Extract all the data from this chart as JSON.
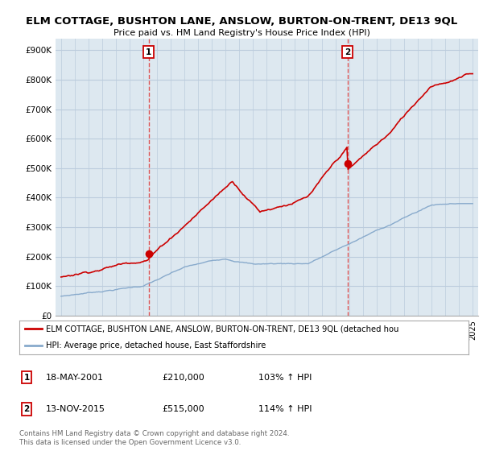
{
  "title": "ELM COTTAGE, BUSHTON LANE, ANSLOW, BURTON-ON-TRENT, DE13 9QL",
  "subtitle": "Price paid vs. HM Land Registry's House Price Index (HPI)",
  "yticks": [
    0,
    100000,
    200000,
    300000,
    400000,
    500000,
    600000,
    700000,
    800000,
    900000
  ],
  "ytick_labels": [
    "£0",
    "£100K",
    "£200K",
    "£300K",
    "£400K",
    "£500K",
    "£600K",
    "£700K",
    "£800K",
    "£900K"
  ],
  "xlim_start": 1994.6,
  "xlim_end": 2025.4,
  "ylim_min": 0,
  "ylim_max": 940000,
  "sale1_x": 2001.38,
  "sale1_y": 210000,
  "sale1_label": "1",
  "sale2_x": 2015.87,
  "sale2_y": 515000,
  "sale2_label": "2",
  "red_line_color": "#cc0000",
  "blue_line_color": "#88aacc",
  "plot_bg_color": "#dde8f0",
  "marker_box_color": "#cc0000",
  "vline_color": "#dd4444",
  "background_color": "#ffffff",
  "grid_color": "#bbccdd",
  "legend_label_red": "ELM COTTAGE, BUSHTON LANE, ANSLOW, BURTON-ON-TRENT, DE13 9QL (detached hou",
  "legend_label_blue": "HPI: Average price, detached house, East Staffordshire",
  "footer1": "Contains HM Land Registry data © Crown copyright and database right 2024.",
  "footer2": "This data is licensed under the Open Government Licence v3.0.",
  "table_row1": [
    "1",
    "18-MAY-2001",
    "£210,000",
    "103% ↑ HPI"
  ],
  "table_row2": [
    "2",
    "13-NOV-2015",
    "£515,000",
    "114% ↑ HPI"
  ]
}
